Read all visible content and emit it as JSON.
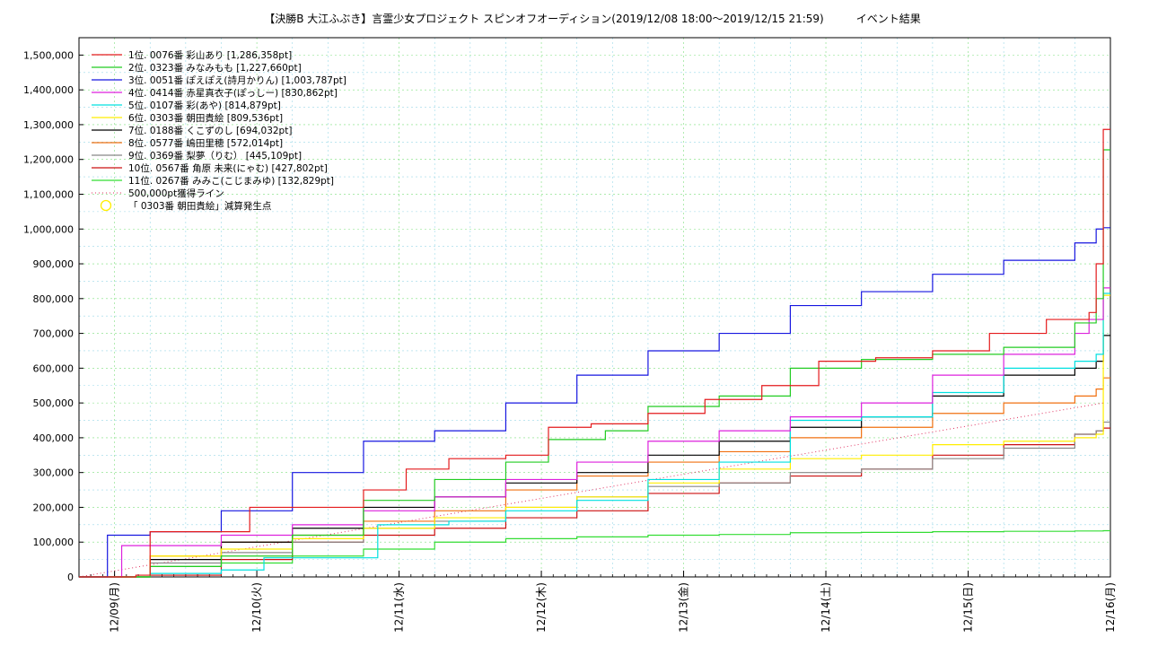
{
  "chart_data": {
    "type": "line",
    "title": "【決勝B 大江ふぶき】言霊少女プロジェクト スピンオフオーディション(2019/12/08 18:00〜2019/12/15 21:59)　　　イベント結果",
    "xlabel": "",
    "ylabel": "",
    "x_range": [
      "2019/12/08 18:00",
      "2019/12/16 00:00"
    ],
    "ylim": [
      0,
      1550000
    ],
    "grid": true,
    "legend_position": "top-left",
    "x_ticks": [
      "12/09(月)",
      "12/10(火)",
      "12/11(水)",
      "12/12(木)",
      "12/13(金)",
      "12/14(土)",
      "12/15(日)",
      "12/16(月)"
    ],
    "x_tick_days": [
      0.25,
      1.25,
      2.25,
      3.25,
      4.25,
      5.25,
      6.25,
      7.25
    ],
    "y_ticks": [
      0,
      100000,
      200000,
      300000,
      400000,
      500000,
      600000,
      700000,
      800000,
      900000,
      1000000,
      1100000,
      1200000,
      1300000,
      1400000,
      1500000
    ],
    "y_tick_labels": [
      "0",
      "100,000",
      "200,000",
      "300,000",
      "400,000",
      "500,000",
      "600,000",
      "700,000",
      "800,000",
      "900,000",
      "1,000,000",
      "1,100,000",
      "1,200,000",
      "1,300,000",
      "1,400,000",
      "1,500,000"
    ],
    "series": [
      {
        "name": "1位. 0076番 彩山あり [1,286,358pt]",
        "color": "#e41a1c",
        "x": [
          0,
          0.4,
          0.5,
          1.0,
          1.2,
          1.5,
          2.0,
          2.3,
          2.6,
          3.0,
          3.3,
          3.6,
          4.0,
          4.4,
          4.8,
          5.2,
          5.6,
          6.0,
          6.4,
          6.8,
          7.1,
          7.15,
          7.2
        ],
        "y": [
          0,
          5000,
          130000,
          130000,
          200000,
          200000,
          250000,
          310000,
          340000,
          350000,
          430000,
          440000,
          470000,
          510000,
          550000,
          620000,
          630000,
          650000,
          700000,
          740000,
          760000,
          900000,
          1286358
        ]
      },
      {
        "name": "2位. 0323番 みなみもも [1,227,660pt]",
        "color": "#22cc22",
        "x": [
          0,
          0.5,
          1.0,
          1.5,
          2.0,
          2.5,
          3.0,
          3.3,
          3.7,
          4.0,
          4.5,
          5.0,
          5.5,
          6.0,
          6.5,
          7.0,
          7.15,
          7.2
        ],
        "y": [
          0,
          30000,
          60000,
          120000,
          220000,
          280000,
          330000,
          395000,
          420000,
          490000,
          520000,
          600000,
          625000,
          640000,
          660000,
          730000,
          800000,
          1227660
        ]
      },
      {
        "name": "3位. 0051番 ぽえぽえ(詩月かりん) [1,003,787pt]",
        "color": "#1616e0",
        "x": [
          0,
          0.2,
          0.5,
          1.0,
          1.5,
          2.0,
          2.5,
          3.0,
          3.5,
          4.0,
          4.5,
          5.0,
          5.5,
          6.0,
          6.5,
          7.0,
          7.15,
          7.2
        ],
        "y": [
          0,
          120000,
          130000,
          190000,
          300000,
          390000,
          420000,
          500000,
          580000,
          650000,
          700000,
          780000,
          820000,
          870000,
          910000,
          960000,
          1000000,
          1003787
        ]
      },
      {
        "name": "4位. 0414番 赤星真衣子(ぽっしー) [830,862pt]",
        "color": "#dd22dd",
        "x": [
          0,
          0.3,
          1.0,
          1.5,
          2.0,
          2.5,
          3.0,
          3.5,
          4.0,
          4.5,
          5.0,
          5.5,
          6.0,
          6.5,
          7.0,
          7.1,
          7.2
        ],
        "y": [
          0,
          90000,
          120000,
          150000,
          190000,
          230000,
          280000,
          330000,
          390000,
          420000,
          460000,
          500000,
          580000,
          640000,
          700000,
          740000,
          830862
        ]
      },
      {
        "name": "5位. 0107番 彩(あや) [814,879pt]",
        "color": "#00e0e0",
        "x": [
          0,
          0.5,
          1.0,
          1.3,
          1.8,
          2.1,
          2.6,
          3.0,
          3.5,
          4.0,
          4.5,
          4.9,
          5.0,
          5.5,
          6.0,
          6.5,
          7.0,
          7.15,
          7.2
        ],
        "y": [
          0,
          10000,
          20000,
          55000,
          55000,
          150000,
          160000,
          190000,
          220000,
          280000,
          330000,
          330000,
          450000,
          460000,
          530000,
          600000,
          620000,
          640000,
          814879
        ]
      },
      {
        "name": "6位. 0303番 朝田貴絵 [809,536pt]",
        "color": "#ffee00",
        "x": [
          0,
          0.5,
          1.0,
          1.5,
          2.0,
          2.5,
          3.0,
          3.5,
          4.0,
          4.5,
          5.0,
          5.5,
          6.0,
          6.5,
          7.0,
          7.15,
          7.2
        ],
        "y": [
          0,
          60000,
          80000,
          110000,
          140000,
          170000,
          200000,
          230000,
          270000,
          310000,
          340000,
          350000,
          380000,
          390000,
          400000,
          410000,
          809536
        ]
      },
      {
        "name": "7位. 0188番 くこずのし [694,032pt]",
        "color": "#000000",
        "x": [
          0,
          0.5,
          1.0,
          1.5,
          2.0,
          2.5,
          3.0,
          3.5,
          4.0,
          4.5,
          5.0,
          5.5,
          6.0,
          6.5,
          7.0,
          7.15,
          7.2
        ],
        "y": [
          0,
          50000,
          100000,
          140000,
          200000,
          230000,
          270000,
          300000,
          350000,
          390000,
          430000,
          460000,
          520000,
          580000,
          600000,
          620000,
          694032
        ]
      },
      {
        "name": "8位. 0577番 嶋田里穂 [572,014pt]",
        "color": "#f07010",
        "x": [
          0,
          0.5,
          1.0,
          1.5,
          2.0,
          2.5,
          3.0,
          3.5,
          4.0,
          4.5,
          5.0,
          5.5,
          6.0,
          6.5,
          7.0,
          7.15,
          7.2
        ],
        "y": [
          0,
          60000,
          100000,
          120000,
          160000,
          190000,
          250000,
          290000,
          330000,
          360000,
          400000,
          430000,
          470000,
          500000,
          520000,
          540000,
          572014
        ]
      },
      {
        "name": "9位. 0369番 梨夢（りむ） [445,109pt]",
        "color": "#888888",
        "x": [
          0,
          0.5,
          1.0,
          1.5,
          2.0,
          2.5,
          3.0,
          3.5,
          4.0,
          4.5,
          5.0,
          5.5,
          6.0,
          6.5,
          7.0,
          7.15,
          7.2
        ],
        "y": [
          0,
          40000,
          70000,
          100000,
          140000,
          160000,
          200000,
          230000,
          260000,
          270000,
          300000,
          310000,
          340000,
          370000,
          410000,
          420000,
          445109
        ]
      },
      {
        "name": "10位. 0567番 角原 未来(にゃむ) [427,802pt]",
        "color": "#cc1010",
        "x": [
          0,
          0.5,
          1.0,
          1.5,
          2.0,
          2.5,
          3.0,
          3.5,
          4.0,
          4.5,
          5.0,
          5.5,
          6.0,
          6.5,
          7.0,
          7.15,
          7.2
        ],
        "y": [
          0,
          5000,
          50000,
          100000,
          120000,
          140000,
          170000,
          190000,
          240000,
          270000,
          290000,
          310000,
          350000,
          380000,
          410000,
          420000,
          427802
        ]
      },
      {
        "name": "11位. 0267番 みみこ(こじまみゆ) [132,829pt]",
        "color": "#33dd33",
        "x": [
          0,
          0.5,
          1.0,
          1.5,
          2.0,
          2.5,
          3.0,
          3.5,
          4.0,
          4.5,
          5.0,
          5.5,
          6.0,
          6.5,
          7.0,
          7.2
        ],
        "y": [
          0,
          30000,
          40000,
          60000,
          80000,
          100000,
          110000,
          115000,
          120000,
          122000,
          127000,
          128000,
          130000,
          131000,
          132000,
          132829
        ]
      }
    ],
    "reference_line": {
      "name": "500,000pt獲得ライン",
      "color": "#e03060",
      "x": [
        0,
        7.2
      ],
      "y": [
        0,
        500000
      ]
    },
    "marker_legend": {
      "name": "「 0303番 朝田貴絵」減算発生点",
      "color": "#ffee00"
    }
  }
}
